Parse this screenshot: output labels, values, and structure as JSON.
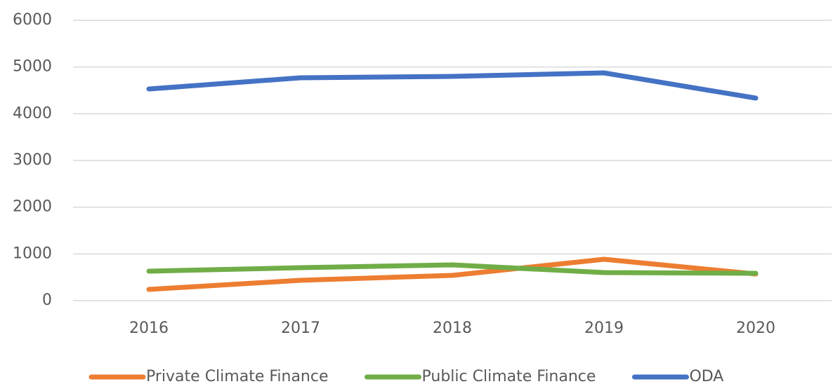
{
  "chart_data": {
    "type": "line",
    "categories": [
      "2016",
      "2017",
      "2018",
      "2019",
      "2020"
    ],
    "series": [
      {
        "name": "Private Climate Finance",
        "color": "#ed7d31",
        "values": [
          240,
          435,
          540,
          885,
          570
        ]
      },
      {
        "name": "Public Climate Finance",
        "color": "#70ad47",
        "values": [
          630,
          705,
          765,
          600,
          585
        ]
      },
      {
        "name": "ODA",
        "color": "#4472c4",
        "values": [
          4530,
          4770,
          4800,
          4875,
          4335
        ]
      }
    ],
    "ylim": [
      0,
      6000
    ],
    "yticks": [
      0,
      1000,
      2000,
      3000,
      4000,
      5000,
      6000
    ],
    "grid": true,
    "legend": "bottom"
  }
}
